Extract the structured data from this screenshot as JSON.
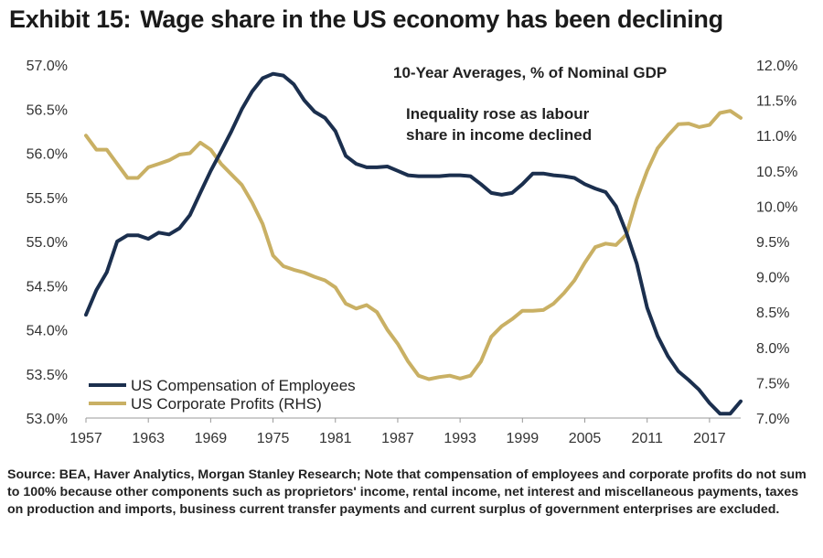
{
  "title": {
    "label": "Exhibit 15:",
    "text": "Wage share in the US economy has been declining"
  },
  "source": "Source: BEA, Haver Analytics, Morgan Stanley Research; Note that compensation of employees and corporate profits do not sum to 100% because other components such as proprietors' income, rental income, net interest and miscellaneous payments, taxes on production and imports, business current transfer payments and current surplus of government enterprises are excluded.",
  "chart_data": {
    "type": "line",
    "subtitle": "10-Year Averages, % of Nominal GDP",
    "annotation": [
      "Inequality rose as labour",
      "share in income declined"
    ],
    "x_ticks": [
      "1957",
      "1963",
      "1969",
      "1975",
      "1981",
      "1987",
      "1993",
      "1999",
      "2005",
      "2011",
      "2017"
    ],
    "xlim": [
      1957,
      2020
    ],
    "y_left": {
      "ticks": [
        "53.0%",
        "53.5%",
        "54.0%",
        "54.5%",
        "55.0%",
        "55.5%",
        "56.0%",
        "56.5%",
        "57.0%"
      ],
      "ylim": [
        53.0,
        57.0
      ]
    },
    "y_right": {
      "ticks": [
        "7.0%",
        "7.5%",
        "8.0%",
        "8.5%",
        "9.0%",
        "9.5%",
        "10.0%",
        "10.5%",
        "11.0%",
        "11.5%",
        "12.0%"
      ],
      "ylim": [
        7.0,
        12.0
      ]
    },
    "legend_position": "bottom-left",
    "series": [
      {
        "name": "US Compensation of Employees",
        "axis": "left",
        "color": "#1b2f4e",
        "x": [
          1957,
          1958,
          1959,
          1960,
          1961,
          1962,
          1963,
          1964,
          1965,
          1966,
          1967,
          1968,
          1969,
          1970,
          1971,
          1972,
          1973,
          1974,
          1975,
          1976,
          1977,
          1978,
          1979,
          1980,
          1981,
          1982,
          1983,
          1984,
          1985,
          1986,
          1987,
          1988,
          1989,
          1990,
          1991,
          1992,
          1993,
          1994,
          1995,
          1996,
          1997,
          1998,
          1999,
          2000,
          2001,
          2002,
          2003,
          2004,
          2005,
          2006,
          2007,
          2008,
          2009,
          2010,
          2011,
          2012,
          2013,
          2014,
          2015,
          2016,
          2017,
          2018,
          2019,
          2020
        ],
        "y": [
          54.17,
          54.45,
          54.65,
          55.0,
          55.07,
          55.07,
          55.03,
          55.1,
          55.08,
          55.15,
          55.3,
          55.55,
          55.8,
          56.02,
          56.25,
          56.5,
          56.7,
          56.85,
          56.9,
          56.88,
          56.78,
          56.6,
          56.47,
          56.4,
          56.25,
          55.97,
          55.88,
          55.84,
          55.84,
          55.85,
          55.8,
          55.75,
          55.74,
          55.74,
          55.74,
          55.75,
          55.75,
          55.74,
          55.65,
          55.55,
          55.53,
          55.55,
          55.65,
          55.77,
          55.77,
          55.75,
          55.74,
          55.72,
          55.65,
          55.6,
          55.56,
          55.4,
          55.1,
          54.75,
          54.25,
          53.93,
          53.7,
          53.53,
          53.43,
          53.32,
          53.17,
          53.05,
          53.05,
          53.19
        ]
      },
      {
        "name": "US Corporate Profits (RHS)",
        "axis": "right",
        "color": "#c9b064",
        "x": [
          1957,
          1958,
          1959,
          1960,
          1961,
          1962,
          1963,
          1964,
          1965,
          1966,
          1967,
          1968,
          1969,
          1970,
          1971,
          1972,
          1973,
          1974,
          1975,
          1976,
          1977,
          1978,
          1979,
          1980,
          1981,
          1982,
          1983,
          1984,
          1985,
          1986,
          1987,
          1988,
          1989,
          1990,
          1991,
          1992,
          1993,
          1994,
          1995,
          1996,
          1997,
          1998,
          1999,
          2000,
          2001,
          2002,
          2003,
          2004,
          2005,
          2006,
          2007,
          2008,
          2009,
          2010,
          2011,
          2012,
          2013,
          2014,
          2015,
          2016,
          2017,
          2018,
          2019,
          2020
        ],
        "y": [
          11.0,
          10.8,
          10.8,
          10.6,
          10.4,
          10.4,
          10.55,
          10.6,
          10.65,
          10.73,
          10.75,
          10.9,
          10.8,
          10.6,
          10.45,
          10.3,
          10.05,
          9.75,
          9.3,
          9.15,
          9.1,
          9.06,
          9.0,
          8.95,
          8.85,
          8.62,
          8.55,
          8.6,
          8.5,
          8.25,
          8.05,
          7.8,
          7.6,
          7.55,
          7.58,
          7.6,
          7.56,
          7.6,
          7.8,
          8.15,
          8.3,
          8.4,
          8.52,
          8.52,
          8.53,
          8.62,
          8.77,
          8.95,
          9.2,
          9.42,
          9.47,
          9.45,
          9.6,
          10.1,
          10.5,
          10.82,
          11.0,
          11.16,
          11.17,
          11.12,
          11.15,
          11.32,
          11.35,
          11.25
        ]
      }
    ]
  }
}
